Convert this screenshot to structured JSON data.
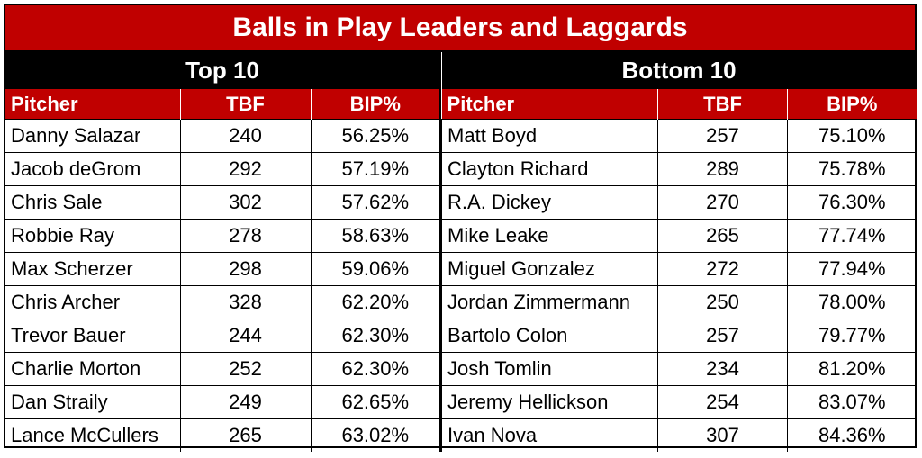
{
  "title": "Balls in Play Leaders and Laggards",
  "top": {
    "group_label": "Top 10",
    "headers": [
      "Pitcher",
      "TBF",
      "BIP%"
    ],
    "rows": [
      {
        "pitcher": "Danny Salazar",
        "tbf": "240",
        "bip": "56.25%"
      },
      {
        "pitcher": "Jacob deGrom",
        "tbf": "292",
        "bip": "57.19%"
      },
      {
        "pitcher": "Chris Sale",
        "tbf": "302",
        "bip": "57.62%"
      },
      {
        "pitcher": "Robbie Ray",
        "tbf": "278",
        "bip": "58.63%"
      },
      {
        "pitcher": "Max Scherzer",
        "tbf": "298",
        "bip": "59.06%"
      },
      {
        "pitcher": "Chris Archer",
        "tbf": "328",
        "bip": "62.20%"
      },
      {
        "pitcher": "Trevor Bauer",
        "tbf": "244",
        "bip": "62.30%"
      },
      {
        "pitcher": "Charlie Morton",
        "tbf": "252",
        "bip": "62.30%"
      },
      {
        "pitcher": "Dan Straily",
        "tbf": "249",
        "bip": "62.65%"
      },
      {
        "pitcher": "Lance McCullers",
        "tbf": "265",
        "bip": "63.02%"
      }
    ]
  },
  "bottom": {
    "group_label": "Bottom 10",
    "headers": [
      "Pitcher",
      "TBF",
      "BIP%"
    ],
    "rows": [
      {
        "pitcher": "Matt Boyd",
        "tbf": "257",
        "bip": "75.10%"
      },
      {
        "pitcher": "Clayton Richard",
        "tbf": "289",
        "bip": "75.78%"
      },
      {
        "pitcher": "R.A. Dickey",
        "tbf": "270",
        "bip": "76.30%"
      },
      {
        "pitcher": "Mike Leake",
        "tbf": "265",
        "bip": "77.74%"
      },
      {
        "pitcher": "Miguel Gonzalez",
        "tbf": "272",
        "bip": "77.94%"
      },
      {
        "pitcher": "Jordan Zimmermann",
        "tbf": "250",
        "bip": "78.00%"
      },
      {
        "pitcher": "Bartolo Colon",
        "tbf": "257",
        "bip": "79.77%"
      },
      {
        "pitcher": "Josh Tomlin",
        "tbf": "234",
        "bip": "81.20%"
      },
      {
        "pitcher": "Jeremy Hellickson",
        "tbf": "254",
        "bip": "83.07%"
      },
      {
        "pitcher": "Ivan Nova",
        "tbf": "307",
        "bip": "84.36%"
      }
    ]
  },
  "colors": {
    "header_red": "#c00000",
    "group_black": "#000000"
  }
}
